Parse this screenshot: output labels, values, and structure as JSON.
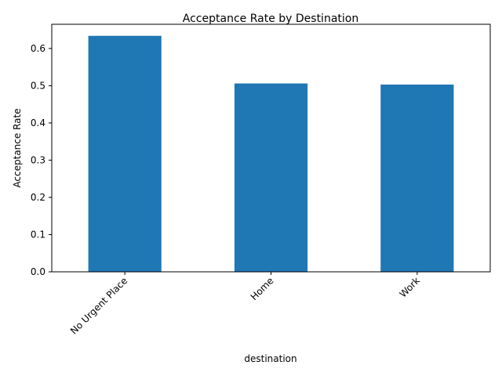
{
  "chart_data": {
    "type": "bar",
    "title": "Acceptance Rate by Destination",
    "xlabel": "destination",
    "ylabel": "Acceptance Rate",
    "categories": [
      "No Urgent Place",
      "Home",
      "Work"
    ],
    "values": [
      0.634,
      0.506,
      0.503
    ],
    "ylim": [
      0,
      0.665
    ],
    "yticks": [
      "0.0",
      "0.1",
      "0.2",
      "0.3",
      "0.4",
      "0.5",
      "0.6"
    ],
    "bar_color": "#1f77b4",
    "grid": false,
    "legend": "none"
  }
}
